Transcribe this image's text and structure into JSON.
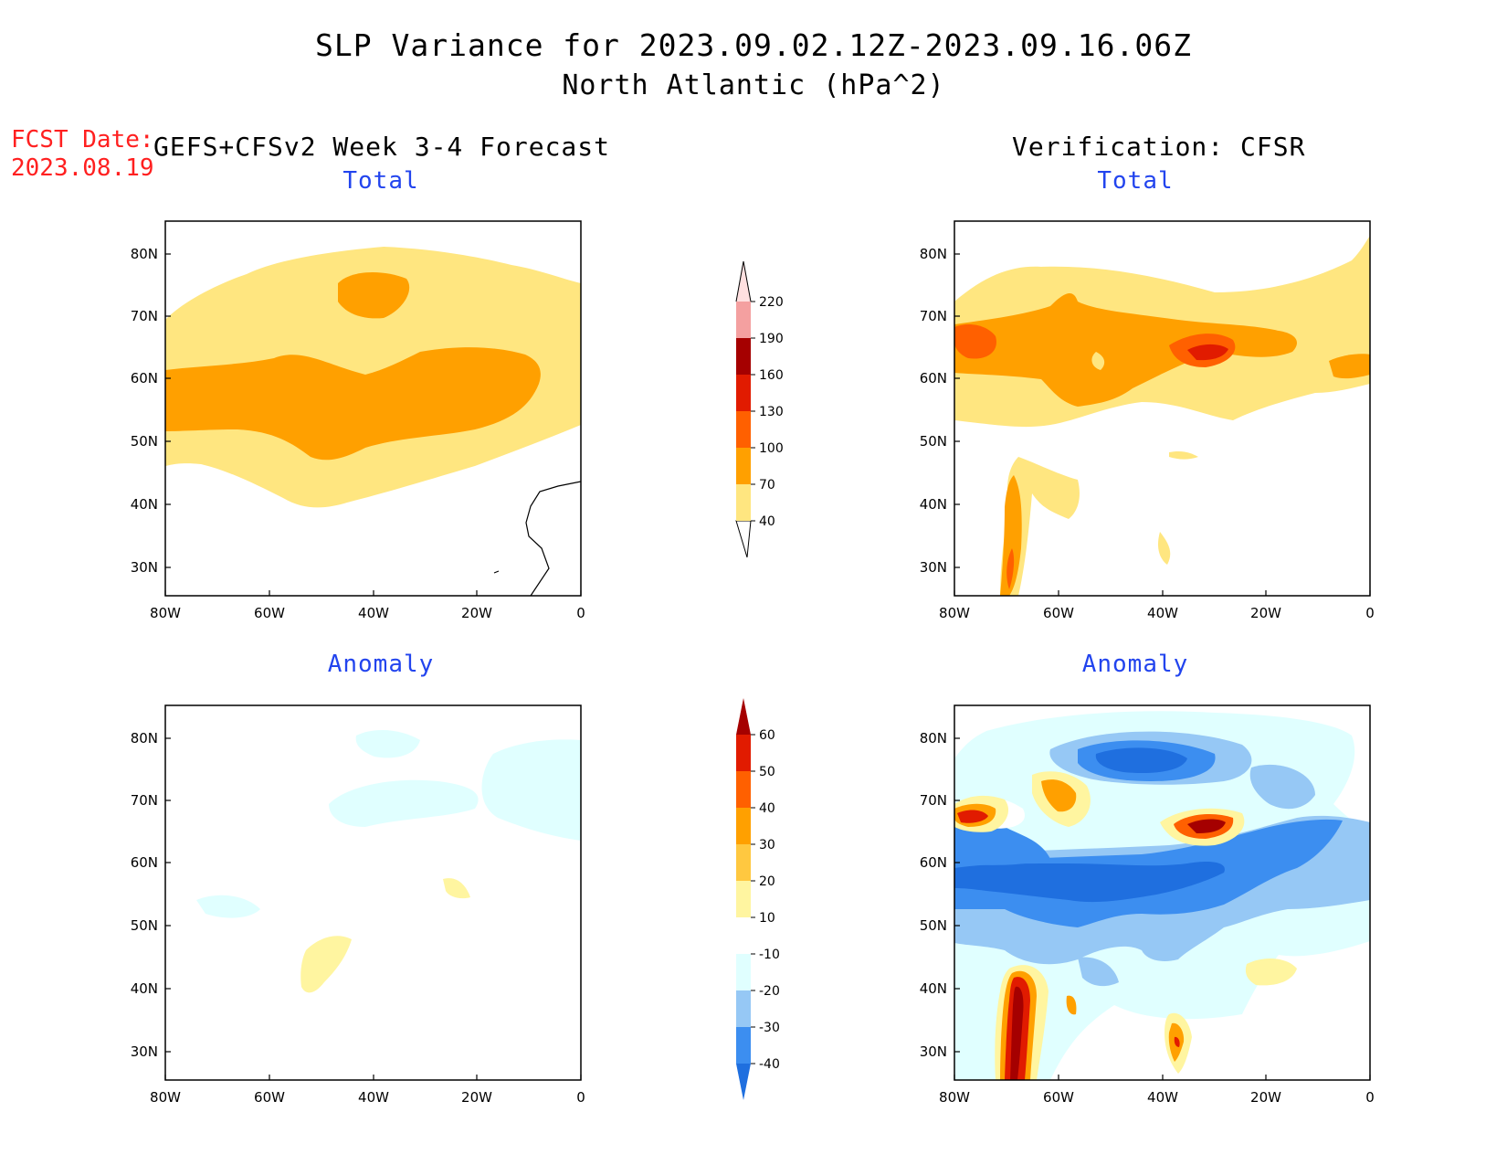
{
  "header": {
    "title": "SLP Variance for 2023.09.02.12Z-2023.09.16.06Z",
    "subtitle": "North Atlantic (hPa^2)"
  },
  "fcst": {
    "label": "FCST Date:",
    "date": "2023.08.19"
  },
  "left_heading": "GEFS+CFSv2 Week 3-4 Forecast",
  "right_heading": "Verification: CFSR",
  "panels": {
    "top_left_title": "Total",
    "top_right_title": "Total",
    "bottom_left_title": "Anomaly",
    "bottom_right_title": "Anomaly"
  },
  "axes": {
    "lat_labels": [
      "80N",
      "70N",
      "60N",
      "50N",
      "40N",
      "30N"
    ],
    "lon_labels": [
      "80W",
      "60W",
      "40W",
      "20W",
      "0"
    ]
  },
  "colorbar_total": {
    "levels": [
      "40",
      "70",
      "100",
      "130",
      "160",
      "190",
      "220"
    ],
    "colors": [
      "#ffe680",
      "#ffa000",
      "#ff6000",
      "#e11b00",
      "#a50000",
      "#f4a0a0",
      "#ffe0e0"
    ]
  },
  "colorbar_anomaly": {
    "levels": [
      "-40",
      "-30",
      "-20",
      "-10",
      "10",
      "20",
      "30",
      "40",
      "50",
      "60"
    ],
    "colors": [
      "#1f6fdf",
      "#3c8ef0",
      "#96c8f5",
      "#e0ffff",
      "#ffffff",
      "#fff5a0",
      "#ffc840",
      "#ffa000",
      "#ff6000",
      "#e11b00",
      "#a50000"
    ]
  }
}
